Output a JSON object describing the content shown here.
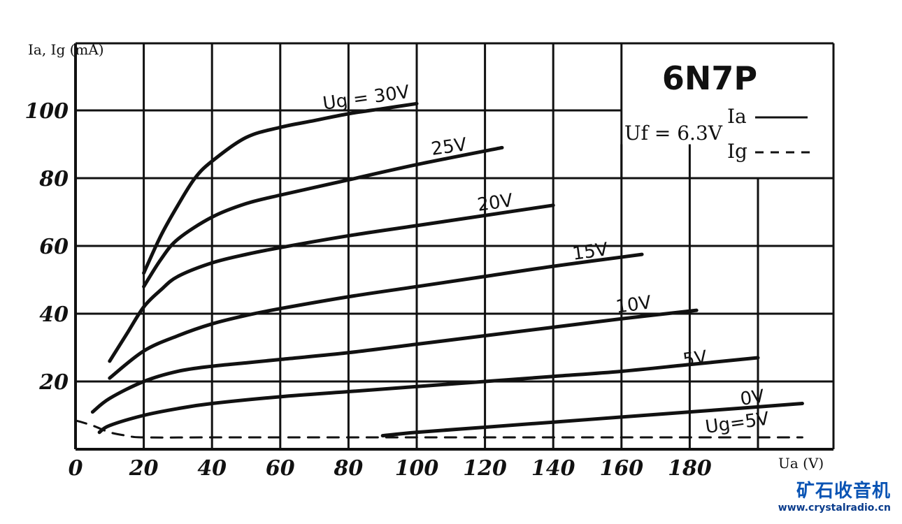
{
  "chart_data": {
    "type": "line",
    "title": "6N7P",
    "xlabel": "Ua (V)",
    "ylabel": "Ia, Ig (mA)",
    "xlim": [
      0,
      200
    ],
    "ylim": [
      0,
      110
    ],
    "x_ticks": [
      "0",
      "20",
      "40",
      "60",
      "80",
      "100",
      "120",
      "140",
      "160",
      "180"
    ],
    "y_ticks": [
      "20",
      "40",
      "60",
      "80",
      "100"
    ],
    "grid": true,
    "legend": {
      "position": "top-right",
      "filament": "Uf = 6.3V",
      "entries": [
        {
          "label": "Ia",
          "style": "solid"
        },
        {
          "label": "Ig",
          "style": "dashed"
        }
      ]
    },
    "series": [
      {
        "name": "Ug=30V",
        "label": "Ug = 30V",
        "style": "solid",
        "x": [
          20,
          25,
          30,
          35,
          40,
          50,
          60,
          70,
          80,
          90,
          100
        ],
        "y": [
          52,
          63,
          72,
          80,
          85,
          92,
          95,
          97,
          99,
          100.5,
          102
        ]
      },
      {
        "name": "25V",
        "label": "25V",
        "style": "solid",
        "x": [
          20,
          25,
          30,
          40,
          50,
          60,
          80,
          100,
          125
        ],
        "y": [
          48,
          56,
          62,
          68.5,
          72.5,
          75,
          79.5,
          84,
          89
        ]
      },
      {
        "name": "20V",
        "label": "20V",
        "style": "solid",
        "x": [
          10,
          15,
          20,
          25,
          30,
          40,
          50,
          60,
          80,
          100,
          120,
          140
        ],
        "y": [
          26,
          34,
          42,
          47,
          51,
          55,
          57.5,
          59.5,
          63,
          66,
          69,
          72
        ]
      },
      {
        "name": "15V",
        "label": "15V",
        "style": "solid",
        "x": [
          10,
          20,
          30,
          40,
          50,
          60,
          80,
          100,
          120,
          140,
          166
        ],
        "y": [
          21,
          29,
          33.5,
          37,
          39.5,
          41.5,
          45,
          48,
          51,
          54,
          57.5
        ]
      },
      {
        "name": "10V",
        "label": "10V",
        "style": "solid",
        "x": [
          5,
          10,
          20,
          30,
          40,
          50,
          60,
          80,
          100,
          120,
          140,
          160,
          182
        ],
        "y": [
          11,
          15,
          20,
          23,
          24.5,
          25.5,
          26.5,
          28.5,
          31,
          33.5,
          36,
          38.5,
          41
        ]
      },
      {
        "name": "5V",
        "label": "5V",
        "style": "solid",
        "x": [
          7,
          10,
          20,
          30,
          40,
          60,
          80,
          100,
          120,
          140,
          160,
          180,
          200
        ],
        "y": [
          5,
          7,
          10,
          12,
          13.5,
          15.5,
          17,
          18.5,
          20,
          21.5,
          23,
          25,
          27
        ]
      },
      {
        "name": "0V",
        "label": "0V",
        "style": "solid",
        "x": [
          90,
          100,
          120,
          140,
          160,
          180,
          200,
          213
        ],
        "y": [
          4,
          5,
          6.5,
          8,
          9.5,
          11,
          12.5,
          13.5
        ]
      },
      {
        "name": "Ig, Ug=5V",
        "label": "Ug=5V",
        "style": "dashed",
        "x": [
          0,
          5,
          10,
          15,
          20,
          40,
          60,
          80,
          100,
          150,
          200,
          213
        ],
        "y": [
          8.5,
          7,
          5,
          4,
          3.5,
          3.5,
          3.5,
          3.5,
          3.5,
          3.5,
          3.5,
          3.5
        ]
      }
    ]
  },
  "watermark": {
    "name_cn": "矿石收音机",
    "url": "www.crystalradio.cn"
  }
}
